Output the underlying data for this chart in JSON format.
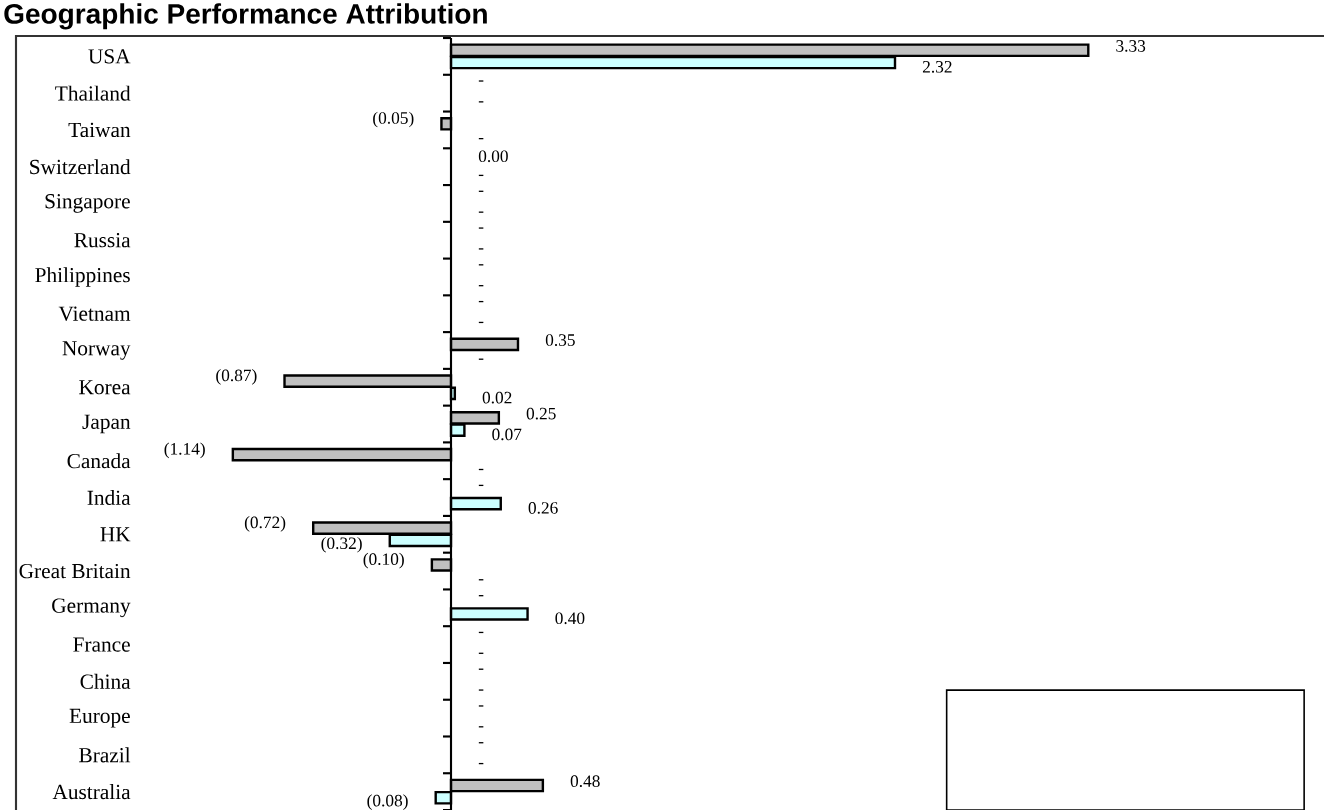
{
  "chart_data": {
    "type": "bar",
    "orientation": "horizontal",
    "title": "Geographic Performance Attribution",
    "categories": [
      "USA",
      "Thailand",
      "Taiwan",
      "Switzerland",
      "Singapore",
      "Russia",
      "Philippines",
      "Vietnam",
      "Norway",
      "Korea",
      "Japan",
      "Canada",
      "India",
      "HK",
      "Great Britain",
      "Germany",
      "France",
      "China",
      "Europe",
      "Brazil",
      "Australia"
    ],
    "series": [
      {
        "color": "#c0c0c0",
        "values": [
          3.33,
          0,
          -0.05,
          0,
          0,
          0,
          0,
          0,
          0.35,
          -0.87,
          0.25,
          -1.14,
          0,
          -0.72,
          -0.1,
          0,
          0,
          0,
          0,
          0,
          0.48
        ],
        "value_labels": [
          "3.33",
          "-",
          "(0.05)",
          "0.00",
          "-",
          "-",
          "-",
          "-",
          "0.35",
          "(0.87)",
          "0.25",
          "(1.14)",
          "-",
          "(0.72)",
          "(0.10)",
          "-",
          "-",
          "-",
          "-",
          "-",
          "0.48"
        ]
      },
      {
        "color": "#ccffff",
        "values": [
          2.32,
          0,
          0,
          0,
          0,
          0,
          0,
          0,
          0,
          0.02,
          0.07,
          0,
          0.26,
          -0.32,
          0,
          0.4,
          0,
          0,
          0,
          0,
          -0.08
        ],
        "value_labels": [
          "2.32",
          "-",
          "-",
          "-",
          "-",
          "-",
          "-",
          "-",
          "-",
          "0.02",
          "0.07",
          "-",
          "0.26",
          "(0.32)",
          "-",
          "0.40",
          "-",
          "-",
          "-",
          "-",
          "(0.08)"
        ]
      }
    ]
  }
}
